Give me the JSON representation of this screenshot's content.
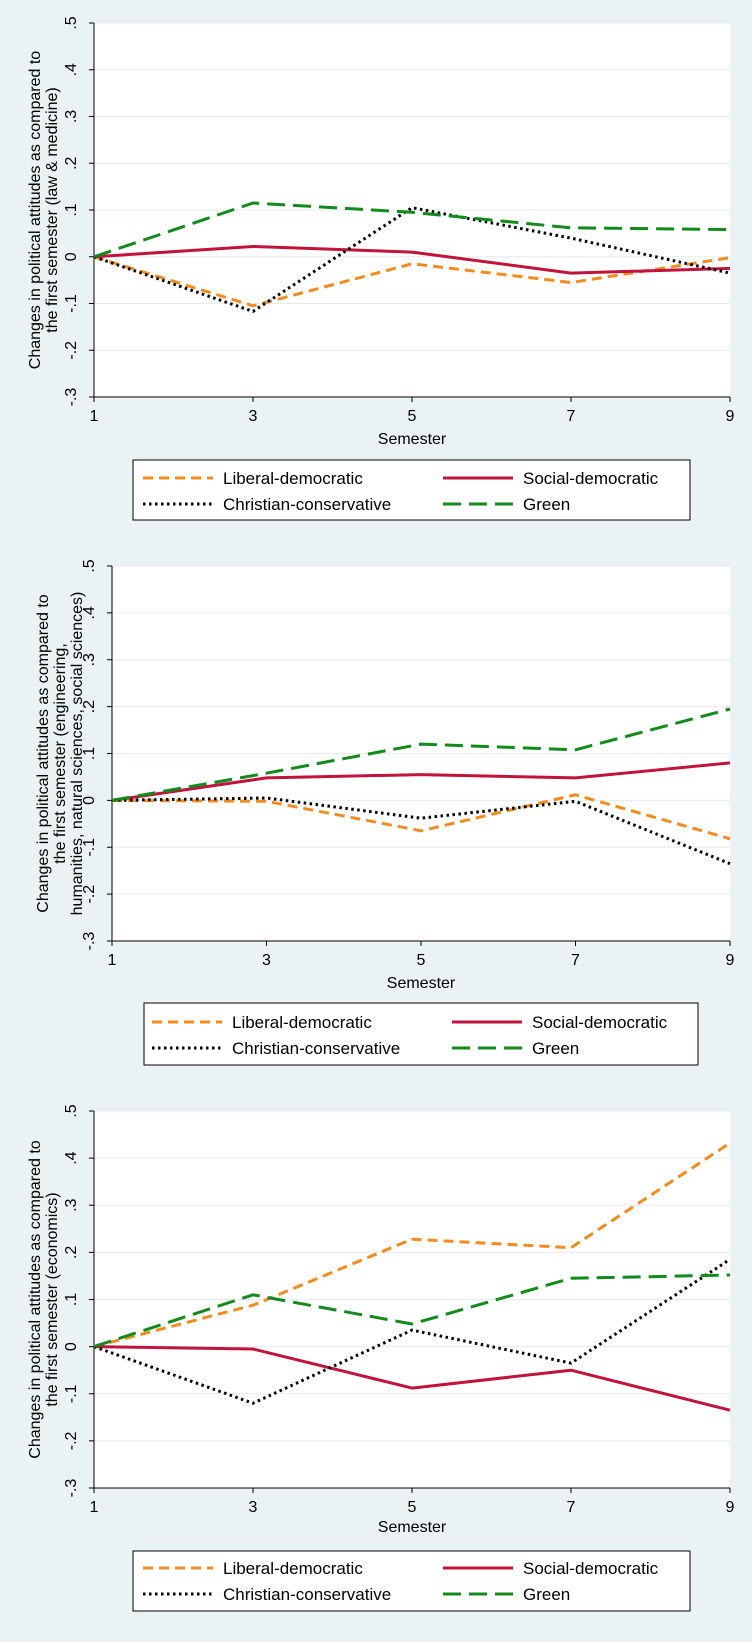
{
  "chart_data": [
    {
      "type": "line",
      "ylabel_lines": [
        "Changes in political attitudes as compared to",
        "the first semester (law & medicine)"
      ],
      "xlabel": "Semester",
      "x": [
        1,
        3,
        5,
        7,
        9
      ],
      "x_ticks": [
        "1",
        "3",
        "5",
        "7",
        "9"
      ],
      "y_ticks": [
        {
          "value": 0.5,
          "label": ".5"
        },
        {
          "value": 0.4,
          "label": ".4"
        },
        {
          "value": 0.3,
          "label": ".3"
        },
        {
          "value": 0.2,
          "label": ".2"
        },
        {
          "value": 0.1,
          "label": ".1"
        },
        {
          "value": 0,
          "label": "0"
        },
        {
          "value": -0.1,
          "label": "-.1"
        },
        {
          "value": -0.2,
          "label": "-.2"
        },
        {
          "value": -0.3,
          "label": "-.3"
        }
      ],
      "ylim": [
        -0.3,
        0.5
      ],
      "grid": true,
      "legend_position": "bottom",
      "series": [
        {
          "name": "Liberal-democratic",
          "color": "#f28c1e",
          "dash": "dash",
          "values": [
            0,
            -0.105,
            -0.015,
            -0.055,
            -0.002
          ]
        },
        {
          "name": "Social-democratic",
          "color": "#c0143c",
          "dash": "solid",
          "values": [
            0,
            0.022,
            0.01,
            -0.035,
            -0.025
          ]
        },
        {
          "name": "Christian-conservative",
          "color": "#000000",
          "dash": "dot",
          "values": [
            0,
            -0.117,
            0.105,
            0.04,
            -0.035
          ]
        },
        {
          "name": "Green",
          "color": "#128a1c",
          "dash": "longdash",
          "values": [
            0,
            0.115,
            0.095,
            0.062,
            0.058
          ]
        }
      ]
    },
    {
      "type": "line",
      "ylabel_lines": [
        "Changes in political attitudes as compared to",
        "the first semester (engineering,",
        "humanities, natural sciences, social sciences)"
      ],
      "xlabel": "Semester",
      "x": [
        1,
        3,
        5,
        7,
        9
      ],
      "x_ticks": [
        "1",
        "3",
        "5",
        "7",
        "9"
      ],
      "y_ticks": [
        {
          "value": 0.5,
          "label": ".5"
        },
        {
          "value": 0.4,
          "label": ".4"
        },
        {
          "value": 0.3,
          "label": ".3"
        },
        {
          "value": 0.2,
          "label": ".2"
        },
        {
          "value": 0.1,
          "label": ".1"
        },
        {
          "value": 0,
          "label": "0"
        },
        {
          "value": -0.1,
          "label": "-.1"
        },
        {
          "value": -0.2,
          "label": "-.2"
        },
        {
          "value": -0.3,
          "label": "-.3"
        }
      ],
      "ylim": [
        -0.3,
        0.5
      ],
      "grid": true,
      "legend_position": "bottom",
      "series": [
        {
          "name": "Liberal-democratic",
          "color": "#f28c1e",
          "dash": "dash",
          "values": [
            0,
            -0.002,
            -0.065,
            0.012,
            -0.082
          ]
        },
        {
          "name": "Social-democratic",
          "color": "#c0143c",
          "dash": "solid",
          "values": [
            0,
            0.048,
            0.055,
            0.048,
            0.08
          ]
        },
        {
          "name": "Christian-conservative",
          "color": "#000000",
          "dash": "dot",
          "values": [
            0,
            0.005,
            -0.038,
            -0.002,
            -0.135
          ]
        },
        {
          "name": "Green",
          "color": "#128a1c",
          "dash": "longdash",
          "values": [
            0,
            0.058,
            0.12,
            0.108,
            0.195
          ]
        }
      ]
    },
    {
      "type": "line",
      "ylabel_lines": [
        "Changes in political attitudes as compared to",
        "the first semester (economics)"
      ],
      "xlabel": "Semester",
      "x": [
        1,
        3,
        5,
        7,
        9
      ],
      "x_ticks": [
        "1",
        "3",
        "5",
        "7",
        "9"
      ],
      "y_ticks": [
        {
          "value": 0.5,
          "label": ".5"
        },
        {
          "value": 0.4,
          "label": ".4"
        },
        {
          "value": 0.3,
          "label": ".3"
        },
        {
          "value": 0.2,
          "label": ".2"
        },
        {
          "value": 0.1,
          "label": ".1"
        },
        {
          "value": 0,
          "label": "0"
        },
        {
          "value": -0.1,
          "label": "-.1"
        },
        {
          "value": -0.2,
          "label": "-.2"
        },
        {
          "value": -0.3,
          "label": "-.3"
        }
      ],
      "ylim": [
        -0.3,
        0.5
      ],
      "grid": true,
      "legend_position": "bottom",
      "series": [
        {
          "name": "Liberal-democratic",
          "color": "#f28c1e",
          "dash": "dash",
          "values": [
            0,
            0.088,
            0.228,
            0.21,
            0.432
          ]
        },
        {
          "name": "Social-democratic",
          "color": "#c0143c",
          "dash": "solid",
          "values": [
            0,
            -0.005,
            -0.088,
            -0.05,
            -0.135
          ]
        },
        {
          "name": "Christian-conservative",
          "color": "#000000",
          "dash": "dot",
          "values": [
            0,
            -0.12,
            0.035,
            -0.035,
            0.185
          ]
        },
        {
          "name": "Green",
          "color": "#128a1c",
          "dash": "longdash",
          "values": [
            0,
            0.11,
            0.048,
            0.145,
            0.152
          ]
        }
      ]
    }
  ]
}
